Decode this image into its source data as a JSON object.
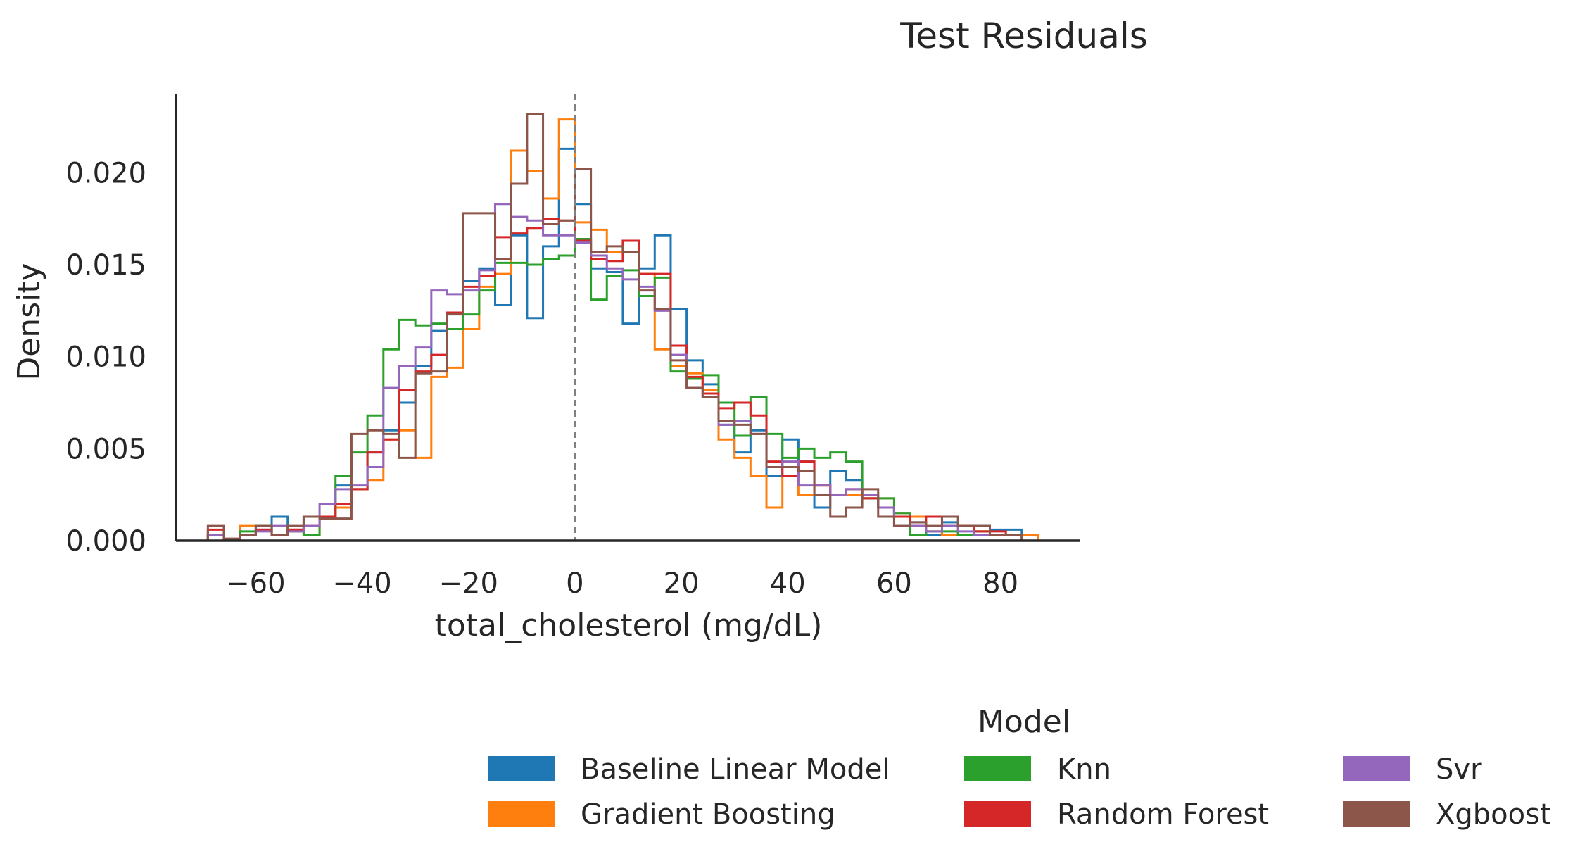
{
  "chart_data": {
    "type": "histogram",
    "style": "step",
    "title": "Test Residuals",
    "xlabel": "total_cholesterol (mg/dL)",
    "ylabel": "Density",
    "xlim": [
      -75,
      95
    ],
    "ylim": [
      0,
      0.0243
    ],
    "xticks": [
      -60,
      -40,
      -20,
      0,
      20,
      40,
      60,
      80
    ],
    "xtick_labels": [
      "−60",
      "−40",
      "−20",
      "0",
      "20",
      "40",
      "60",
      "80"
    ],
    "yticks": [
      0.0,
      0.005,
      0.01,
      0.015,
      0.02
    ],
    "ytick_labels": [
      "0.000",
      "0.005",
      "0.010",
      "0.015",
      "0.020"
    ],
    "reference_line": {
      "x": 0,
      "style": "dashed",
      "color": "#808080"
    },
    "grid": false,
    "legend": {
      "title": "Model",
      "placement": "bottom-center outside",
      "columns": 3,
      "entries": [
        "Baseline Linear Model",
        "Gradient Boosting",
        "Knn",
        "Random Forest",
        "Svr",
        "Xgboost"
      ]
    },
    "bins": {
      "start": -69,
      "width": 3,
      "count": 52
    },
    "series": [
      {
        "name": "Baseline Linear Model",
        "color": "#1f77b4",
        "values": [
          0.0003,
          0.0001,
          0.0003,
          0.0006,
          0.0013,
          0.0006,
          0.0013,
          0.0013,
          0.003,
          0.0028,
          0.0048,
          0.006,
          0.0075,
          0.0095,
          0.0114,
          0.0124,
          0.0141,
          0.0148,
          0.0128,
          0.0166,
          0.0121,
          0.016,
          0.0213,
          0.0183,
          0.0148,
          0.0146,
          0.0118,
          0.0148,
          0.0166,
          0.0126,
          0.0098,
          0.0085,
          0.0063,
          0.0048,
          0.006,
          0.0035,
          0.0055,
          0.0043,
          0.0018,
          0.0038,
          0.0033,
          0.0023,
          0.0018,
          0.0015,
          0.001,
          0.0003,
          0.001,
          0.0008,
          0.0008,
          0.0006,
          0.0006,
          0.0
        ]
      },
      {
        "name": "Gradient Boosting",
        "color": "#ff7f0e",
        "values": [
          0.0003,
          0.0001,
          0.0008,
          0.0008,
          0.0003,
          0.0006,
          0.0003,
          0.0013,
          0.0018,
          0.0028,
          0.0033,
          0.0055,
          0.006,
          0.0045,
          0.0089,
          0.0094,
          0.0115,
          0.0138,
          0.0145,
          0.0212,
          0.0201,
          0.0186,
          0.0229,
          0.0173,
          0.0169,
          0.0157,
          0.0163,
          0.0145,
          0.0104,
          0.0095,
          0.0091,
          0.0082,
          0.0055,
          0.0045,
          0.0035,
          0.0018,
          0.0035,
          0.0025,
          0.003,
          0.0025,
          0.0025,
          0.0023,
          0.0023,
          0.0015,
          0.0013,
          0.0005,
          0.0003,
          0.0008,
          0.0005,
          0.0003,
          0.0003,
          0.0003
        ]
      },
      {
        "name": "Knn",
        "color": "#2ca02c",
        "values": [
          0.0003,
          0.0001,
          0.0005,
          0.0008,
          0.0003,
          0.0005,
          0.0003,
          0.0013,
          0.0035,
          0.0048,
          0.0068,
          0.0104,
          0.012,
          0.0117,
          0.0118,
          0.0115,
          0.0123,
          0.0136,
          0.0151,
          0.0151,
          0.015,
          0.0153,
          0.0155,
          0.0164,
          0.0131,
          0.0144,
          0.0147,
          0.0133,
          0.0143,
          0.0092,
          0.0088,
          0.009,
          0.0075,
          0.0057,
          0.0078,
          0.0058,
          0.0045,
          0.005,
          0.0045,
          0.0048,
          0.0043,
          0.0023,
          0.0023,
          0.0015,
          0.0003,
          0.0005,
          0.0005,
          0.0003,
          0.0005,
          0.0003,
          0.0003,
          0.0
        ]
      },
      {
        "name": "Random Forest",
        "color": "#d62728",
        "values": [
          0.0006,
          0.0001,
          0.0003,
          0.0006,
          0.0003,
          0.0006,
          0.0008,
          0.0013,
          0.002,
          0.0028,
          0.0048,
          0.0055,
          0.0082,
          0.0092,
          0.0101,
          0.0124,
          0.0138,
          0.0144,
          0.0165,
          0.0167,
          0.017,
          0.0175,
          0.0174,
          0.0163,
          0.0153,
          0.0152,
          0.0163,
          0.0145,
          0.0145,
          0.0106,
          0.0089,
          0.008,
          0.0072,
          0.0075,
          0.0068,
          0.0043,
          0.0035,
          0.0043,
          0.003,
          0.0025,
          0.0028,
          0.0023,
          0.0018,
          0.0013,
          0.0008,
          0.0013,
          0.0008,
          0.0008,
          0.0005,
          0.0005,
          0.0003,
          0.0
        ]
      },
      {
        "name": "Svr",
        "color": "#9467bd",
        "values": [
          0.0003,
          0.0001,
          0.0003,
          0.0005,
          0.0008,
          0.0005,
          0.0008,
          0.002,
          0.0028,
          0.003,
          0.004,
          0.0083,
          0.0095,
          0.0105,
          0.0136,
          0.0134,
          0.0136,
          0.0147,
          0.0183,
          0.0176,
          0.0174,
          0.0166,
          0.0166,
          0.0162,
          0.0155,
          0.0148,
          0.0142,
          0.0138,
          0.0125,
          0.0101,
          0.0083,
          0.0078,
          0.0063,
          0.0065,
          0.0058,
          0.004,
          0.0043,
          0.003,
          0.003,
          0.0025,
          0.0028,
          0.0025,
          0.0018,
          0.0008,
          0.0008,
          0.0005,
          0.0008,
          0.0005,
          0.0003,
          0.0003,
          0.0003,
          0.0
        ]
      },
      {
        "name": "Xgboost",
        "color": "#8c564b",
        "values": [
          0.0008,
          0.0001,
          0.0003,
          0.0008,
          0.0003,
          0.0008,
          0.0013,
          0.0012,
          0.0012,
          0.0058,
          0.006,
          0.0058,
          0.0045,
          0.0091,
          0.0092,
          0.0123,
          0.0178,
          0.0178,
          0.0153,
          0.0194,
          0.0232,
          0.0172,
          0.0174,
          0.0202,
          0.0157,
          0.016,
          0.0157,
          0.0136,
          0.0126,
          0.0098,
          0.0083,
          0.0078,
          0.0065,
          0.0063,
          0.0058,
          0.004,
          0.004,
          0.0038,
          0.0025,
          0.0013,
          0.0018,
          0.0028,
          0.0013,
          0.0008,
          0.001,
          0.0008,
          0.0013,
          0.0008,
          0.0008,
          0.0003,
          0.0003,
          0.0
        ]
      }
    ]
  }
}
